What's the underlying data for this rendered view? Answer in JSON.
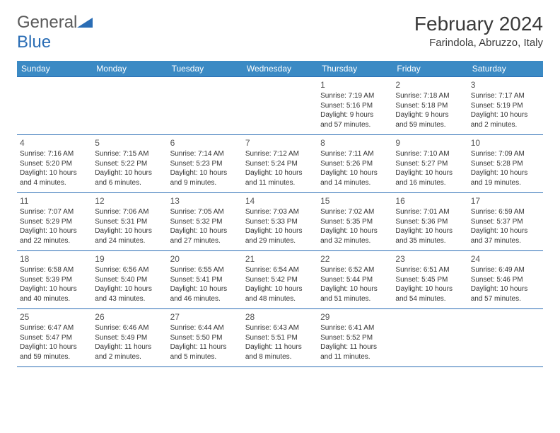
{
  "logo": {
    "text1": "General",
    "text2": "Blue"
  },
  "header": {
    "month": "February 2024",
    "location": "Farindola, Abruzzo, Italy"
  },
  "colors": {
    "header_bg": "#3b8ac4",
    "header_text": "#ffffff",
    "border": "#2a6db5",
    "logo_gray": "#5a5a5a",
    "logo_blue": "#2a6db5"
  },
  "weekdays": [
    "Sunday",
    "Monday",
    "Tuesday",
    "Wednesday",
    "Thursday",
    "Friday",
    "Saturday"
  ],
  "weeks": [
    [
      null,
      null,
      null,
      null,
      {
        "n": "1",
        "sr": "Sunrise: 7:19 AM",
        "ss": "Sunset: 5:16 PM",
        "d1": "Daylight: 9 hours",
        "d2": "and 57 minutes."
      },
      {
        "n": "2",
        "sr": "Sunrise: 7:18 AM",
        "ss": "Sunset: 5:18 PM",
        "d1": "Daylight: 9 hours",
        "d2": "and 59 minutes."
      },
      {
        "n": "3",
        "sr": "Sunrise: 7:17 AM",
        "ss": "Sunset: 5:19 PM",
        "d1": "Daylight: 10 hours",
        "d2": "and 2 minutes."
      }
    ],
    [
      {
        "n": "4",
        "sr": "Sunrise: 7:16 AM",
        "ss": "Sunset: 5:20 PM",
        "d1": "Daylight: 10 hours",
        "d2": "and 4 minutes."
      },
      {
        "n": "5",
        "sr": "Sunrise: 7:15 AM",
        "ss": "Sunset: 5:22 PM",
        "d1": "Daylight: 10 hours",
        "d2": "and 6 minutes."
      },
      {
        "n": "6",
        "sr": "Sunrise: 7:14 AM",
        "ss": "Sunset: 5:23 PM",
        "d1": "Daylight: 10 hours",
        "d2": "and 9 minutes."
      },
      {
        "n": "7",
        "sr": "Sunrise: 7:12 AM",
        "ss": "Sunset: 5:24 PM",
        "d1": "Daylight: 10 hours",
        "d2": "and 11 minutes."
      },
      {
        "n": "8",
        "sr": "Sunrise: 7:11 AM",
        "ss": "Sunset: 5:26 PM",
        "d1": "Daylight: 10 hours",
        "d2": "and 14 minutes."
      },
      {
        "n": "9",
        "sr": "Sunrise: 7:10 AM",
        "ss": "Sunset: 5:27 PM",
        "d1": "Daylight: 10 hours",
        "d2": "and 16 minutes."
      },
      {
        "n": "10",
        "sr": "Sunrise: 7:09 AM",
        "ss": "Sunset: 5:28 PM",
        "d1": "Daylight: 10 hours",
        "d2": "and 19 minutes."
      }
    ],
    [
      {
        "n": "11",
        "sr": "Sunrise: 7:07 AM",
        "ss": "Sunset: 5:29 PM",
        "d1": "Daylight: 10 hours",
        "d2": "and 22 minutes."
      },
      {
        "n": "12",
        "sr": "Sunrise: 7:06 AM",
        "ss": "Sunset: 5:31 PM",
        "d1": "Daylight: 10 hours",
        "d2": "and 24 minutes."
      },
      {
        "n": "13",
        "sr": "Sunrise: 7:05 AM",
        "ss": "Sunset: 5:32 PM",
        "d1": "Daylight: 10 hours",
        "d2": "and 27 minutes."
      },
      {
        "n": "14",
        "sr": "Sunrise: 7:03 AM",
        "ss": "Sunset: 5:33 PM",
        "d1": "Daylight: 10 hours",
        "d2": "and 29 minutes."
      },
      {
        "n": "15",
        "sr": "Sunrise: 7:02 AM",
        "ss": "Sunset: 5:35 PM",
        "d1": "Daylight: 10 hours",
        "d2": "and 32 minutes."
      },
      {
        "n": "16",
        "sr": "Sunrise: 7:01 AM",
        "ss": "Sunset: 5:36 PM",
        "d1": "Daylight: 10 hours",
        "d2": "and 35 minutes."
      },
      {
        "n": "17",
        "sr": "Sunrise: 6:59 AM",
        "ss": "Sunset: 5:37 PM",
        "d1": "Daylight: 10 hours",
        "d2": "and 37 minutes."
      }
    ],
    [
      {
        "n": "18",
        "sr": "Sunrise: 6:58 AM",
        "ss": "Sunset: 5:39 PM",
        "d1": "Daylight: 10 hours",
        "d2": "and 40 minutes."
      },
      {
        "n": "19",
        "sr": "Sunrise: 6:56 AM",
        "ss": "Sunset: 5:40 PM",
        "d1": "Daylight: 10 hours",
        "d2": "and 43 minutes."
      },
      {
        "n": "20",
        "sr": "Sunrise: 6:55 AM",
        "ss": "Sunset: 5:41 PM",
        "d1": "Daylight: 10 hours",
        "d2": "and 46 minutes."
      },
      {
        "n": "21",
        "sr": "Sunrise: 6:54 AM",
        "ss": "Sunset: 5:42 PM",
        "d1": "Daylight: 10 hours",
        "d2": "and 48 minutes."
      },
      {
        "n": "22",
        "sr": "Sunrise: 6:52 AM",
        "ss": "Sunset: 5:44 PM",
        "d1": "Daylight: 10 hours",
        "d2": "and 51 minutes."
      },
      {
        "n": "23",
        "sr": "Sunrise: 6:51 AM",
        "ss": "Sunset: 5:45 PM",
        "d1": "Daylight: 10 hours",
        "d2": "and 54 minutes."
      },
      {
        "n": "24",
        "sr": "Sunrise: 6:49 AM",
        "ss": "Sunset: 5:46 PM",
        "d1": "Daylight: 10 hours",
        "d2": "and 57 minutes."
      }
    ],
    [
      {
        "n": "25",
        "sr": "Sunrise: 6:47 AM",
        "ss": "Sunset: 5:47 PM",
        "d1": "Daylight: 10 hours",
        "d2": "and 59 minutes."
      },
      {
        "n": "26",
        "sr": "Sunrise: 6:46 AM",
        "ss": "Sunset: 5:49 PM",
        "d1": "Daylight: 11 hours",
        "d2": "and 2 minutes."
      },
      {
        "n": "27",
        "sr": "Sunrise: 6:44 AM",
        "ss": "Sunset: 5:50 PM",
        "d1": "Daylight: 11 hours",
        "d2": "and 5 minutes."
      },
      {
        "n": "28",
        "sr": "Sunrise: 6:43 AM",
        "ss": "Sunset: 5:51 PM",
        "d1": "Daylight: 11 hours",
        "d2": "and 8 minutes."
      },
      {
        "n": "29",
        "sr": "Sunrise: 6:41 AM",
        "ss": "Sunset: 5:52 PM",
        "d1": "Daylight: 11 hours",
        "d2": "and 11 minutes."
      },
      null,
      null
    ]
  ]
}
